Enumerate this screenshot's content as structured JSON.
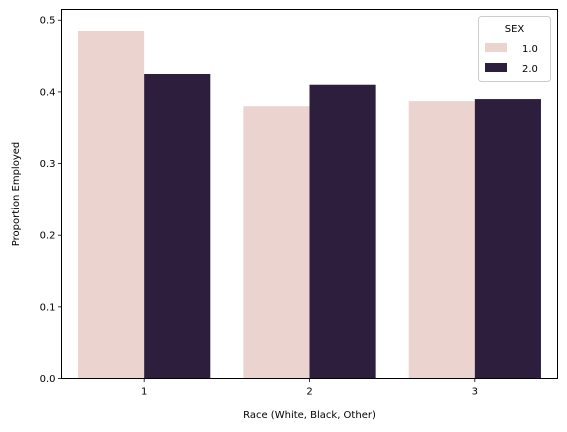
{
  "chart_data": {
    "type": "bar",
    "xlabel": "Race (White, Black, Other)",
    "ylabel": "Proportion Employed",
    "categories": [
      "1",
      "2",
      "3"
    ],
    "series": [
      {
        "name": "1.0",
        "color": "#ebd3cf",
        "values": [
          0.485,
          0.38,
          0.387
        ]
      },
      {
        "name": "2.0",
        "color": "#2d1e3d",
        "values": [
          0.425,
          0.41,
          0.39
        ]
      }
    ],
    "ylim": [
      0,
      0.515
    ],
    "yticks": [
      "0.0",
      "0.1",
      "0.2",
      "0.3",
      "0.4",
      "0.5"
    ],
    "legend": {
      "title": "SEX",
      "placement": "top-right"
    },
    "grid": false
  }
}
